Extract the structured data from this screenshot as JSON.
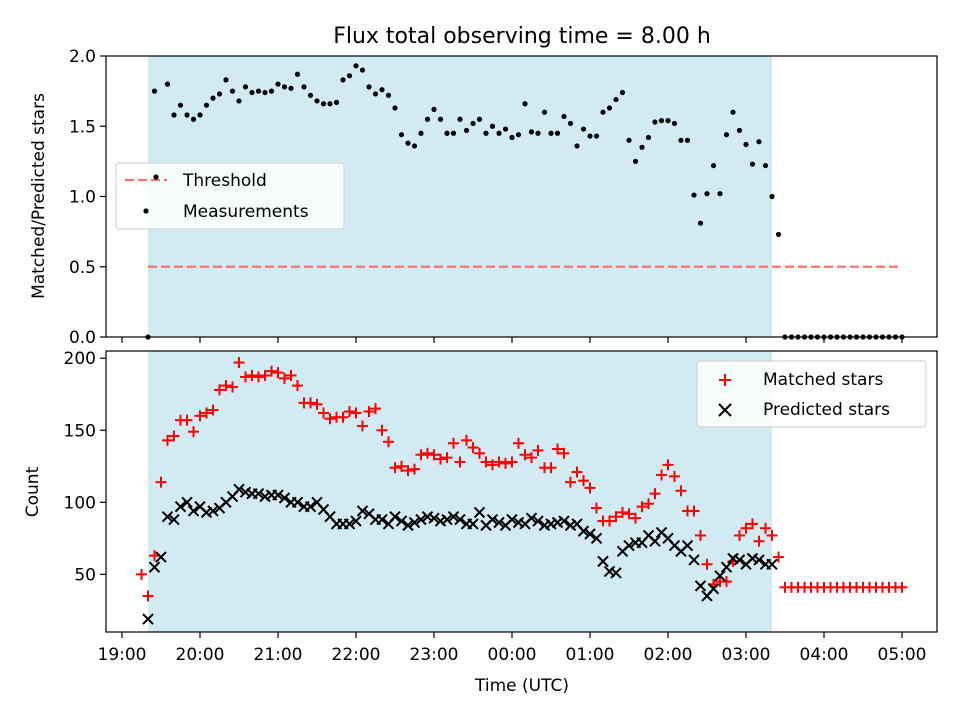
{
  "title": "Flux total observing time = 8.00 h",
  "colors": {
    "shade": "#add8e6",
    "threshold": "#ff7070",
    "matched": "#ff0000",
    "predicted": "#000000",
    "measurement": "#000000"
  },
  "chart_data": [
    {
      "type": "scatter",
      "panel": "top",
      "xlabel": "",
      "ylabel": "Matched/Predicted stars",
      "ylim": [
        0,
        2.0
      ],
      "yticks": [
        0,
        0.5,
        1.0,
        1.5,
        2.0
      ],
      "ytick_labels": [
        "0.0",
        "0.5",
        "1.0",
        "1.5",
        "2.0"
      ],
      "x_range": [
        "19:00",
        "05:00"
      ],
      "shaded_interval": [
        "19:20",
        "03:20"
      ],
      "legend": {
        "position": "center-left",
        "labels": [
          "Threshold",
          "Measurements"
        ]
      },
      "threshold": {
        "name": "Threshold",
        "value": 0.5,
        "x": [
          "19:20",
          "05:00"
        ]
      },
      "series": [
        {
          "name": "Measurements",
          "marker": "dot",
          "x": [
            "19:20",
            "19:25",
            "19:35",
            "19:40",
            "19:45",
            "19:50",
            "19:55",
            "20:00",
            "20:05",
            "20:10",
            "20:15",
            "20:20",
            "20:25",
            "20:30",
            "20:35",
            "20:40",
            "20:45",
            "20:50",
            "20:55",
            "21:00",
            "21:05",
            "21:10",
            "21:15",
            "21:20",
            "21:25",
            "21:30",
            "21:35",
            "21:40",
            "21:45",
            "21:50",
            "21:55",
            "22:00",
            "22:05",
            "22:10",
            "22:15",
            "22:20",
            "22:25",
            "22:30",
            "22:35",
            "22:40",
            "22:45",
            "22:50",
            "22:55",
            "23:00",
            "23:05",
            "23:10",
            "23:15",
            "23:20",
            "23:25",
            "23:30",
            "23:35",
            "23:40",
            "23:45",
            "23:50",
            "23:55",
            "00:00",
            "00:05",
            "00:10",
            "00:15",
            "00:20",
            "00:25",
            "00:30",
            "00:35",
            "00:40",
            "00:45",
            "00:50",
            "00:55",
            "01:00",
            "01:05",
            "01:10",
            "01:15",
            "01:20",
            "01:25",
            "01:30",
            "01:35",
            "01:40",
            "01:45",
            "01:50",
            "01:55",
            "02:00",
            "02:05",
            "02:10",
            "02:15",
            "02:20",
            "02:25",
            "02:30",
            "02:35",
            "02:40",
            "02:45",
            "02:50",
            "02:55",
            "03:00",
            "03:05",
            "03:10",
            "03:15",
            "03:20",
            "03:25",
            "03:30",
            "03:35",
            "03:40",
            "03:45",
            "03:50",
            "03:55",
            "04:00",
            "04:05",
            "04:10",
            "04:15",
            "04:20",
            "04:25",
            "04:30",
            "04:35",
            "04:40",
            "04:45",
            "04:50",
            "04:55",
            "05:00"
          ],
          "y": [
            0.0,
            1.75,
            1.8,
            1.58,
            1.65,
            1.58,
            1.55,
            1.58,
            1.65,
            1.7,
            1.73,
            1.83,
            1.75,
            1.68,
            1.78,
            1.74,
            1.75,
            1.74,
            1.75,
            1.8,
            1.78,
            1.77,
            1.87,
            1.78,
            1.72,
            1.68,
            1.66,
            1.66,
            1.67,
            1.83,
            1.86,
            1.93,
            1.9,
            1.78,
            1.73,
            1.76,
            1.72,
            1.63,
            1.44,
            1.38,
            1.36,
            1.45,
            1.55,
            1.62,
            1.55,
            1.45,
            1.45,
            1.55,
            1.47,
            1.52,
            1.55,
            1.45,
            1.5,
            1.45,
            1.48,
            1.42,
            1.44,
            1.66,
            1.46,
            1.45,
            1.6,
            1.45,
            1.45,
            1.57,
            1.52,
            1.36,
            1.48,
            1.43,
            1.43,
            1.6,
            1.63,
            1.69,
            1.74,
            1.4,
            1.25,
            1.35,
            1.42,
            1.53,
            1.54,
            1.54,
            1.52,
            1.4,
            1.4,
            1.01,
            0.81,
            1.02,
            1.22,
            1.02,
            1.44,
            1.6,
            1.47,
            1.37,
            1.23,
            1.39,
            1.22,
            1.0,
            0.73,
            0,
            0,
            0,
            0,
            0,
            0,
            0,
            0,
            0,
            0,
            0,
            0,
            0,
            0,
            0,
            0,
            0,
            0,
            0
          ]
        }
      ]
    },
    {
      "type": "scatter",
      "panel": "bottom",
      "xlabel": "Time (UTC)",
      "ylabel": "Count",
      "ylim": [
        10,
        205
      ],
      "yticks": [
        50,
        100,
        150,
        200
      ],
      "ytick_labels": [
        "50",
        "100",
        "150",
        "200"
      ],
      "x_range": [
        "19:00",
        "05:00"
      ],
      "xticks": [
        "19:00",
        "20:00",
        "21:00",
        "22:00",
        "23:00",
        "00:00",
        "01:00",
        "02:00",
        "03:00",
        "04:00",
        "05:00"
      ],
      "shaded_interval": [
        "19:20",
        "03:20"
      ],
      "legend": {
        "position": "top-right",
        "labels": [
          "Matched stars",
          "Predicted stars"
        ]
      },
      "series": [
        {
          "name": "Matched stars",
          "marker": "plus",
          "x": [
            "19:15",
            "19:20",
            "19:25",
            "19:30",
            "19:35",
            "19:40",
            "19:45",
            "19:50",
            "19:55",
            "20:00",
            "20:05",
            "20:10",
            "20:15",
            "20:20",
            "20:25",
            "20:30",
            "20:35",
            "20:40",
            "20:45",
            "20:50",
            "20:55",
            "21:00",
            "21:05",
            "21:10",
            "21:15",
            "21:20",
            "21:25",
            "21:30",
            "21:35",
            "21:40",
            "21:45",
            "21:50",
            "21:55",
            "22:00",
            "22:05",
            "22:10",
            "22:15",
            "22:20",
            "22:25",
            "22:30",
            "22:35",
            "22:40",
            "22:45",
            "22:50",
            "22:55",
            "23:00",
            "23:05",
            "23:10",
            "23:15",
            "23:20",
            "23:25",
            "23:30",
            "23:35",
            "23:40",
            "23:45",
            "23:50",
            "23:55",
            "00:00",
            "00:05",
            "00:10",
            "00:15",
            "00:20",
            "00:25",
            "00:30",
            "00:35",
            "00:40",
            "00:45",
            "00:50",
            "00:55",
            "01:00",
            "01:05",
            "01:10",
            "01:15",
            "01:20",
            "01:25",
            "01:30",
            "01:35",
            "01:40",
            "01:45",
            "01:50",
            "01:55",
            "02:00",
            "02:05",
            "02:10",
            "02:15",
            "02:20",
            "02:25",
            "02:30",
            "02:35",
            "02:40",
            "02:45",
            "02:50",
            "02:55",
            "03:00",
            "03:05",
            "03:10",
            "03:15",
            "03:20",
            "03:25",
            "03:30",
            "03:35",
            "03:40",
            "03:45",
            "03:50",
            "03:55",
            "04:00",
            "04:05",
            "04:10",
            "04:15",
            "04:20",
            "04:25",
            "04:30",
            "04:35",
            "04:40",
            "04:45",
            "04:50",
            "04:55",
            "05:00"
          ],
          "y": [
            50,
            35,
            63,
            114,
            143,
            146,
            157,
            157,
            149,
            160,
            162,
            164,
            178,
            181,
            180,
            197,
            187,
            188,
            187,
            188,
            191,
            190,
            186,
            188,
            181,
            169,
            169,
            168,
            162,
            158,
            159,
            159,
            163,
            162,
            153,
            163,
            165,
            150,
            142,
            124,
            125,
            122,
            123,
            133,
            134,
            133,
            130,
            131,
            141,
            128,
            143,
            138,
            134,
            128,
            126,
            128,
            127,
            128,
            141,
            133,
            131,
            136,
            124,
            124,
            137,
            134,
            114,
            121,
            115,
            110,
            96,
            87,
            87,
            90,
            93,
            92,
            89,
            97,
            99,
            106,
            119,
            126,
            118,
            108,
            94,
            94,
            77,
            57,
            43,
            45,
            45,
            59,
            77,
            82,
            85,
            73,
            82,
            77,
            62,
            41,
            41,
            41,
            41,
            41,
            41,
            41,
            41,
            41,
            41,
            41,
            41,
            41,
            41,
            41,
            41,
            41,
            41,
            41
          ]
        },
        {
          "name": "Predicted stars",
          "marker": "x",
          "x": [
            "19:20",
            "19:25",
            "19:30",
            "19:35",
            "19:40",
            "19:45",
            "19:50",
            "19:55",
            "20:00",
            "20:05",
            "20:10",
            "20:15",
            "20:20",
            "20:25",
            "20:30",
            "20:35",
            "20:40",
            "20:45",
            "20:50",
            "20:55",
            "21:00",
            "21:05",
            "21:10",
            "21:15",
            "21:20",
            "21:25",
            "21:30",
            "21:35",
            "21:40",
            "21:45",
            "21:50",
            "21:55",
            "22:00",
            "22:05",
            "22:10",
            "22:15",
            "22:20",
            "22:25",
            "22:30",
            "22:35",
            "22:40",
            "22:45",
            "22:50",
            "22:55",
            "23:00",
            "23:05",
            "23:10",
            "23:15",
            "23:20",
            "23:25",
            "23:30",
            "23:35",
            "23:40",
            "23:45",
            "23:50",
            "23:55",
            "00:00",
            "00:05",
            "00:10",
            "00:15",
            "00:20",
            "00:25",
            "00:30",
            "00:35",
            "00:40",
            "00:45",
            "00:50",
            "00:55",
            "01:00",
            "01:05",
            "01:10",
            "01:15",
            "01:20",
            "01:25",
            "01:30",
            "01:35",
            "01:40",
            "01:45",
            "01:50",
            "01:55",
            "02:00",
            "02:05",
            "02:10",
            "02:15",
            "02:20",
            "02:25",
            "02:30",
            "02:35",
            "02:40",
            "02:45",
            "02:50",
            "02:55",
            "03:00",
            "03:05",
            "03:10",
            "03:15",
            "03:20"
          ],
          "y": [
            19,
            55,
            62,
            90,
            88,
            97,
            100,
            94,
            97,
            93,
            94,
            96,
            100,
            104,
            109,
            107,
            106,
            106,
            104,
            105,
            105,
            103,
            100,
            100,
            97,
            97,
            100,
            95,
            90,
            85,
            85,
            85,
            87,
            94,
            92,
            88,
            88,
            85,
            90,
            87,
            84,
            86,
            88,
            90,
            89,
            87,
            88,
            90,
            88,
            85,
            85,
            93,
            84,
            88,
            86,
            84,
            88,
            86,
            85,
            89,
            87,
            84,
            85,
            86,
            87,
            84,
            85,
            80,
            78,
            75,
            59,
            52,
            51,
            66,
            70,
            72,
            72,
            77,
            73,
            79,
            75,
            70,
            66,
            70,
            60,
            42,
            35,
            40,
            49,
            55,
            61,
            60,
            57,
            61,
            60,
            57,
            57
          ]
        }
      ]
    }
  ]
}
